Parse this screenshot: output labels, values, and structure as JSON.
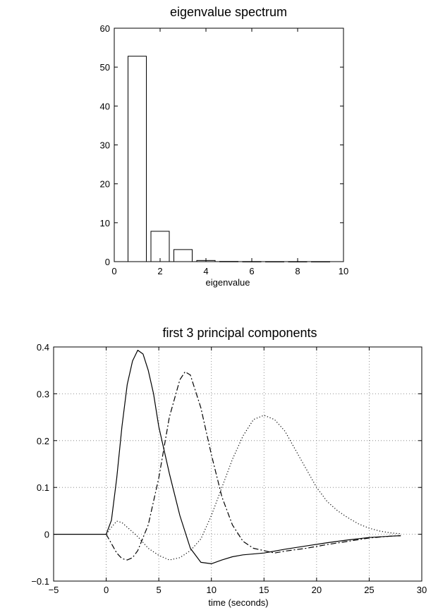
{
  "chart_data": [
    {
      "type": "bar",
      "title": "eigenvalue spectrum",
      "xlabel": "eigenvalue",
      "ylabel": "",
      "xlim": [
        0,
        10
      ],
      "ylim": [
        0,
        60
      ],
      "xticks": [
        "0",
        "2",
        "4",
        "6",
        "8",
        "10"
      ],
      "yticks": [
        "0",
        "10",
        "20",
        "30",
        "40",
        "50",
        "60"
      ],
      "x": [
        1,
        2,
        3,
        4,
        5,
        6,
        7,
        8,
        9
      ],
      "values": [
        52.8,
        7.8,
        3.1,
        0.3,
        0.05,
        0.02,
        0.01,
        0.01,
        0.01
      ],
      "grid": false
    },
    {
      "type": "line",
      "title": "first 3 principal components",
      "xlabel": "time (seconds)",
      "ylabel": "",
      "xlim": [
        -5,
        30
      ],
      "ylim": [
        -0.1,
        0.4
      ],
      "xticks": [
        "−5",
        "0",
        "5",
        "10",
        "15",
        "20",
        "25",
        "30"
      ],
      "yticks": [
        "−0.1",
        "0",
        "0.1",
        "0.2",
        "0.3",
        "0.4"
      ],
      "grid": true,
      "series": [
        {
          "style": "solid",
          "points": [
            [
              -5,
              0
            ],
            [
              -2,
              0
            ],
            [
              -0.5,
              0
            ],
            [
              0,
              0
            ],
            [
              0.5,
              0.03
            ],
            [
              1,
              0.12
            ],
            [
              1.5,
              0.23
            ],
            [
              2,
              0.32
            ],
            [
              2.5,
              0.37
            ],
            [
              3,
              0.393
            ],
            [
              3.5,
              0.385
            ],
            [
              4,
              0.35
            ],
            [
              4.5,
              0.3
            ],
            [
              5,
              0.23
            ],
            [
              6,
              0.13
            ],
            [
              7,
              0.04
            ],
            [
              8,
              -0.03
            ],
            [
              9,
              -0.06
            ],
            [
              10,
              -0.063
            ],
            [
              11,
              -0.055
            ],
            [
              12,
              -0.048
            ],
            [
              13,
              -0.044
            ],
            [
              15,
              -0.04
            ],
            [
              17,
              -0.032
            ],
            [
              19,
              -0.025
            ],
            [
              21,
              -0.018
            ],
            [
              23,
              -0.012
            ],
            [
              25,
              -0.007
            ],
            [
              27,
              -0.004
            ],
            [
              28,
              -0.003
            ]
          ]
        },
        {
          "style": "dashdot",
          "points": [
            [
              0,
              0
            ],
            [
              0.5,
              -0.02
            ],
            [
              1,
              -0.04
            ],
            [
              1.5,
              -0.052
            ],
            [
              2,
              -0.055
            ],
            [
              2.5,
              -0.05
            ],
            [
              3,
              -0.035
            ],
            [
              4,
              0.02
            ],
            [
              5,
              0.12
            ],
            [
              6,
              0.25
            ],
            [
              7,
              0.33
            ],
            [
              7.5,
              0.347
            ],
            [
              8,
              0.34
            ],
            [
              9,
              0.27
            ],
            [
              10,
              0.17
            ],
            [
              11,
              0.08
            ],
            [
              12,
              0.02
            ],
            [
              13,
              -0.015
            ],
            [
              14,
              -0.03
            ],
            [
              15,
              -0.035
            ],
            [
              16,
              -0.04
            ],
            [
              17,
              -0.036
            ],
            [
              19,
              -0.03
            ],
            [
              21,
              -0.022
            ],
            [
              23,
              -0.015
            ],
            [
              25,
              -0.008
            ],
            [
              27,
              -0.004
            ],
            [
              28,
              -0.003
            ]
          ]
        },
        {
          "style": "dotted",
          "points": [
            [
              0,
              0
            ],
            [
              0.5,
              0.015
            ],
            [
              1,
              0.028
            ],
            [
              1.5,
              0.025
            ],
            [
              2,
              0.015
            ],
            [
              3,
              -0.005
            ],
            [
              4,
              -0.03
            ],
            [
              5,
              -0.045
            ],
            [
              6,
              -0.055
            ],
            [
              7,
              -0.05
            ],
            [
              8,
              -0.035
            ],
            [
              9,
              -0.01
            ],
            [
              10,
              0.04
            ],
            [
              11,
              0.1
            ],
            [
              12,
              0.16
            ],
            [
              13,
              0.21
            ],
            [
              14,
              0.245
            ],
            [
              15,
              0.254
            ],
            [
              16,
              0.245
            ],
            [
              17,
              0.22
            ],
            [
              18,
              0.18
            ],
            [
              19,
              0.14
            ],
            [
              20,
              0.1
            ],
            [
              21,
              0.07
            ],
            [
              22,
              0.05
            ],
            [
              23,
              0.035
            ],
            [
              24,
              0.022
            ],
            [
              25,
              0.013
            ],
            [
              26,
              0.007
            ],
            [
              27,
              0.003
            ],
            [
              28,
              0.001
            ]
          ]
        }
      ]
    }
  ]
}
